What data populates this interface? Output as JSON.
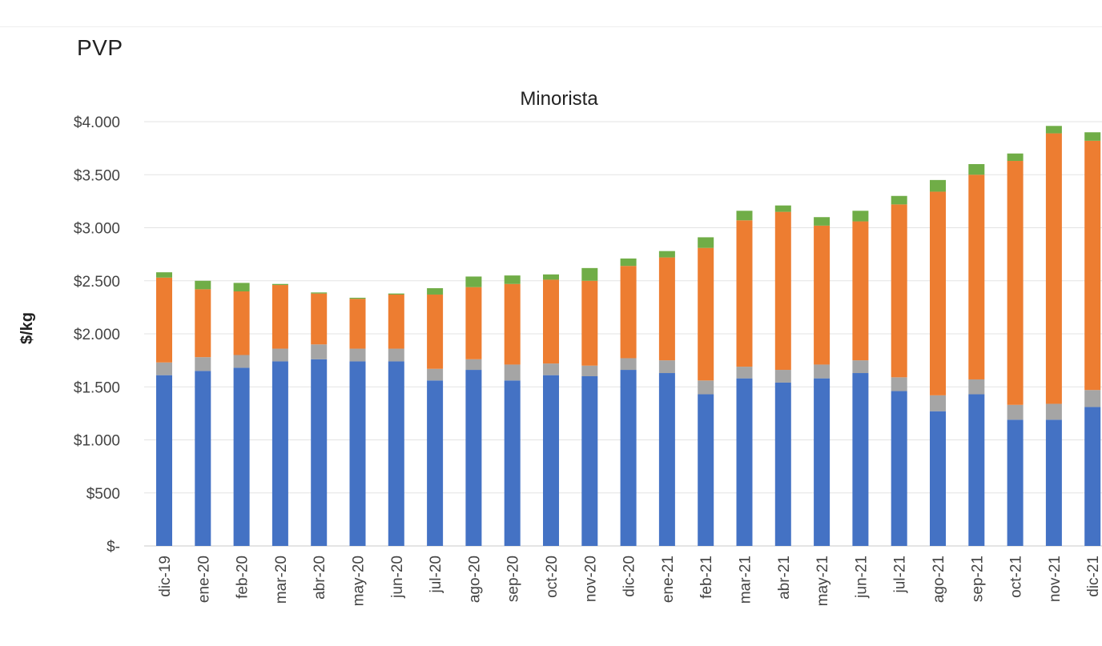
{
  "header": {
    "section_label": "PVP"
  },
  "chart_data": {
    "type": "bar",
    "stacked": true,
    "title": "Minorista",
    "xlabel": "",
    "ylabel": "$/kg",
    "ylim": [
      0,
      4000
    ],
    "yticks": [
      {
        "value": 0,
        "label": "$-"
      },
      {
        "value": 500,
        "label": "$500"
      },
      {
        "value": 1000,
        "label": "$1.000"
      },
      {
        "value": 1500,
        "label": "$1.500"
      },
      {
        "value": 2000,
        "label": "$2.000"
      },
      {
        "value": 2500,
        "label": "$2.500"
      },
      {
        "value": 3000,
        "label": "$3.000"
      },
      {
        "value": 3500,
        "label": "$3.500"
      },
      {
        "value": 4000,
        "label": "$4.000"
      }
    ],
    "grid": true,
    "categories": [
      "dic-19",
      "ene-20",
      "feb-20",
      "mar-20",
      "abr-20",
      "may-20",
      "jun-20",
      "jul-20",
      "ago-20",
      "sep-20",
      "oct-20",
      "nov-20",
      "dic-20",
      "ene-21",
      "feb-21",
      "mar-21",
      "abr-21",
      "may-21",
      "jun-21",
      "jul-21",
      "ago-21",
      "sep-21",
      "oct-21",
      "nov-21",
      "dic-21"
    ],
    "series": [
      {
        "color": "#4472c4",
        "values": [
          1610,
          1650,
          1680,
          1740,
          1760,
          1740,
          1740,
          1560,
          1660,
          1560,
          1610,
          1600,
          1660,
          1630,
          1430,
          1580,
          1540,
          1580,
          1630,
          1460,
          1270,
          1430,
          1190,
          1190,
          1310
        ]
      },
      {
        "color": "#a5a5a5",
        "values": [
          120,
          130,
          120,
          120,
          140,
          120,
          120,
          110,
          100,
          150,
          110,
          100,
          110,
          120,
          130,
          110,
          120,
          130,
          120,
          130,
          150,
          140,
          140,
          150,
          160
        ]
      },
      {
        "color": "#ed7d31",
        "values": [
          800,
          640,
          600,
          600,
          480,
          470,
          510,
          700,
          680,
          760,
          790,
          800,
          870,
          970,
          1250,
          1380,
          1490,
          1310,
          1310,
          1630,
          1920,
          1930,
          2300,
          2550,
          2350
        ]
      },
      {
        "color": "#70ad47",
        "values": [
          50,
          80,
          80,
          10,
          10,
          10,
          10,
          60,
          100,
          80,
          50,
          120,
          70,
          60,
          100,
          90,
          60,
          80,
          100,
          80,
          110,
          100,
          70,
          70,
          80
        ]
      }
    ]
  }
}
